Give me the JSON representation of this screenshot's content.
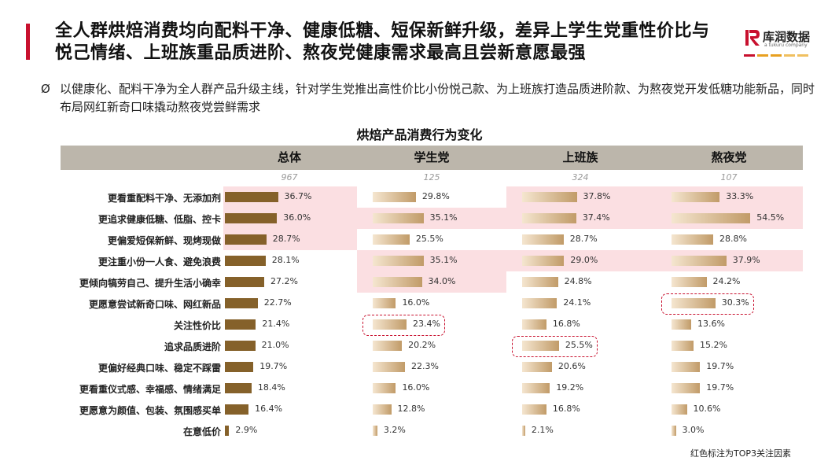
{
  "header": {
    "title": "全人群烘焙消费均向配料干净、健康低糖、短保新鲜升级，差异上学生党重性价比与悦己情绪、上班族重品质进阶、熬夜党健康需求最高且尝新意愿最强",
    "logo_text": "库润数据",
    "logo_sub": "a tukuru company",
    "logo_icon": "kr-logo-icon",
    "colors": {
      "accent": "#c8102e",
      "dash2": "#e8a020",
      "dash3": "#f0c060"
    }
  },
  "summary": {
    "bullet_icon": "Ø",
    "text": "以健康化、配料干净为全人群产品升级主线，针对学生党推出高性价比小份悦己款、为上班族打造品质进阶款、为熬夜党开发低糖功能新品，同时布局网红新奇口味撬动熬夜党尝鲜需求"
  },
  "footnote": "红色标注为TOP3关注因素",
  "chart_data": {
    "type": "bar",
    "title": "烘焙产品消费行为变化",
    "xlim": [
      0,
      60
    ],
    "categories": [
      "更看重配料干净、无添加剂",
      "更追求健康低糖、低脂、控卡",
      "更偏爱短保新鲜、现烤现做",
      "更注重小份一人食、避免浪费",
      "更倾向犒劳自己、提升生活小确幸",
      "更愿意尝试新奇口味、网红新品",
      "关注性价比",
      "追求品质进阶",
      "更偏好经典口味、稳定不踩雷",
      "更看重仪式感、幸福感、情绪满足",
      "更愿意为颜值、包装、氛围感买单",
      "在意低价"
    ],
    "series": [
      {
        "name": "总体",
        "sample": "967",
        "values": [
          36.7,
          36.0,
          28.7,
          28.1,
          27.2,
          22.7,
          21.4,
          21.0,
          19.7,
          18.4,
          16.4,
          2.9
        ],
        "labels": [
          "36.7%",
          "36.0%",
          "28.7%",
          "28.1%",
          "27.2%",
          "22.7%",
          "21.4%",
          "21.0%",
          "19.7%",
          "18.4%",
          "16.4%",
          "2.9%"
        ],
        "highlight": [
          0,
          1,
          2
        ],
        "circled": []
      },
      {
        "name": "学生党",
        "sample": "125",
        "values": [
          29.8,
          35.1,
          25.5,
          35.1,
          34.0,
          16.0,
          23.4,
          20.2,
          22.3,
          16.0,
          12.8,
          3.2
        ],
        "labels": [
          "29.8%",
          "35.1%",
          "25.5%",
          "35.1%",
          "34.0%",
          "16.0%",
          "23.4%",
          "20.2%",
          "22.3%",
          "16.0%",
          "12.8%",
          "3.2%"
        ],
        "highlight": [
          1,
          3,
          4
        ],
        "circled": [
          6
        ]
      },
      {
        "name": "上班族",
        "sample": "324",
        "values": [
          37.8,
          37.4,
          28.7,
          29.0,
          24.8,
          24.1,
          16.8,
          25.5,
          20.6,
          19.2,
          16.8,
          2.1
        ],
        "labels": [
          "37.8%",
          "37.4%",
          "28.7%",
          "29.0%",
          "24.8%",
          "24.1%",
          "16.8%",
          "25.5%",
          "20.6%",
          "19.2%",
          "16.8%",
          "2.1%"
        ],
        "highlight": [
          0,
          1,
          3
        ],
        "circled": [
          7
        ]
      },
      {
        "name": "熬夜党",
        "sample": "107",
        "values": [
          33.3,
          54.5,
          28.8,
          37.9,
          24.2,
          30.3,
          13.6,
          15.2,
          19.7,
          19.7,
          10.6,
          3.0
        ],
        "labels": [
          "33.3%",
          "54.5%",
          "28.8%",
          "37.9%",
          "24.2%",
          "30.3%",
          "13.6%",
          "15.2%",
          "19.7%",
          "19.7%",
          "10.6%",
          "3.0%"
        ],
        "highlight": [
          0,
          1,
          3
        ],
        "circled": [
          5
        ]
      }
    ]
  }
}
